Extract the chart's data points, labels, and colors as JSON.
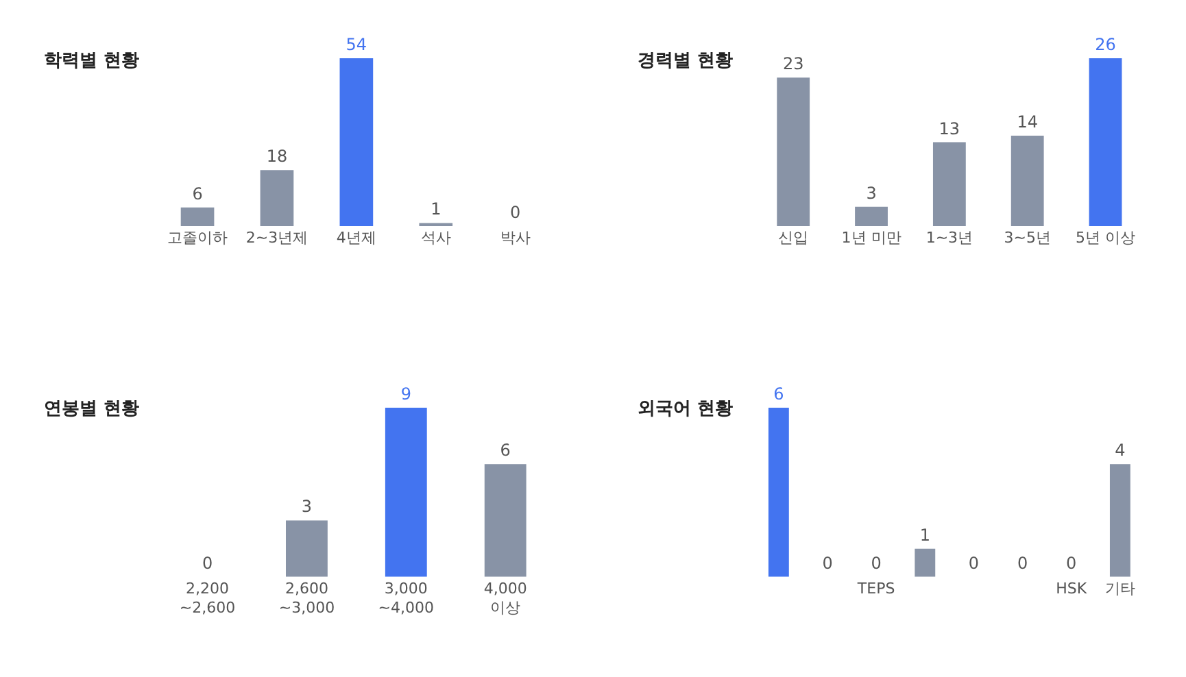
{
  "chart_data": [
    {
      "type": "bar",
      "title": "학력별 현황",
      "categories": [
        "고졸이하",
        "2~3년제",
        "4년제",
        "석사",
        "박사"
      ],
      "values": [
        6,
        18,
        54,
        1,
        0
      ],
      "colors": [
        "#8893a6",
        "#8893a6",
        "#4374f0",
        "#8893a6",
        "#8893a6"
      ],
      "data_labels": true,
      "tick_labels": "x"
    },
    {
      "type": "bar",
      "title": "경력별 현황",
      "categories": [
        "신입",
        "1년 미만",
        "1~3년",
        "3~5년",
        "5년 이상"
      ],
      "values": [
        23,
        3,
        13,
        14,
        26
      ],
      "colors": [
        "#8893a6",
        "#8893a6",
        "#8893a6",
        "#8893a6",
        "#4374f0"
      ],
      "data_labels": true,
      "tick_labels": "x"
    },
    {
      "type": "bar",
      "title": "연봉별 현황",
      "categories": [
        "2,200\n~2,600",
        "2,600\n~3,000",
        "3,000\n~4,000",
        "4,000\n이상"
      ],
      "values": [
        0,
        3,
        9,
        6
      ],
      "colors": [
        "#8893a6",
        "#8893a6",
        "#4374f0",
        "#8893a6"
      ],
      "data_labels": true,
      "tick_labels": "x"
    },
    {
      "type": "bar",
      "title": "외국어 현황",
      "categories": [
        null,
        null,
        "TEPS",
        null,
        null,
        null,
        "HSK",
        "기타"
      ],
      "values": [
        6,
        0,
        0,
        1,
        0,
        0,
        0,
        4
      ],
      "colors": [
        "#4374f0",
        "#8893a6",
        "#8893a6",
        "#8893a6",
        "#8893a6",
        "#8893a6",
        "#8893a6",
        "#8893a6"
      ],
      "data_labels": true,
      "tick_labels": "x"
    }
  ]
}
